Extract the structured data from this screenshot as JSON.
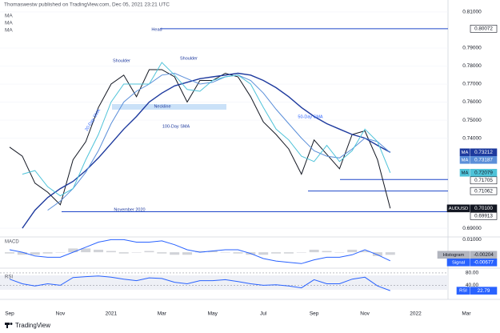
{
  "header": "Thomaswestw published on TradingView.com, Dec 05, 2021 23:21 UTC",
  "footer": "TradingView",
  "chart_data": [
    {
      "type": "line",
      "categories": [
        "Sep",
        null,
        null,
        null,
        "Nov",
        null,
        null,
        null,
        "2021",
        null,
        null,
        null,
        "Mar",
        null,
        null,
        null,
        "May",
        null,
        null,
        null,
        "Jul",
        null,
        null,
        null,
        "Sep",
        null,
        null,
        null,
        "Nov",
        null,
        null,
        null,
        "2022",
        null,
        null,
        null,
        "Mar"
      ],
      "ylim": [
        0.6856,
        0.8131
      ],
      "yticks": [
        {
          "value": 0.81,
          "label": "0.81000"
        },
        {
          "value": 0.79,
          "label": "0.79000"
        },
        {
          "value": 0.78,
          "label": "0.78000"
        },
        {
          "value": 0.77,
          "label": "0.77000"
        },
        {
          "value": 0.76,
          "label": "0.76000"
        },
        {
          "value": 0.75,
          "label": "0.75000"
        },
        {
          "value": 0.74,
          "label": "0.74000"
        },
        {
          "value": 0.69,
          "label": "0.69000"
        }
      ],
      "grid": true,
      "series": [
        {
          "name": "AUDUSD",
          "color": "#131722",
          "in_legend": false,
          "values": [
            0.735,
            0.73,
            0.715,
            0.71,
            0.703,
            0.728,
            0.738,
            0.757,
            0.77,
            0.775,
            0.763,
            0.778,
            0.778,
            0.774,
            0.76,
            0.772,
            0.772,
            0.776,
            0.774,
            0.763,
            0.749,
            0.742,
            0.734,
            0.72,
            0.739,
            0.731,
            0.723,
            0.742,
            0.744,
            0.728,
            0.701,
            null,
            null,
            null,
            null,
            null,
            null
          ],
          "badge": {
            "value": 0.701,
            "label": "0.70100"
          }
        },
        {
          "name": "MA",
          "color": "#1e3a9e",
          "in_legend": true,
          "values": [
            null,
            0.69,
            0.7,
            0.707,
            0.712,
            0.716,
            0.722,
            0.729,
            0.737,
            0.745,
            0.752,
            0.76,
            0.765,
            0.769,
            0.771,
            0.773,
            0.774,
            0.775,
            0.776,
            0.775,
            0.772,
            0.768,
            0.763,
            0.757,
            0.752,
            0.748,
            0.745,
            0.742,
            0.74,
            0.736,
            0.73212,
            null,
            null,
            null,
            null,
            null,
            null
          ],
          "badge": {
            "value": 0.73212,
            "label": "0.73212"
          }
        },
        {
          "name": "MA",
          "color": "#5b8fd9",
          "in_legend": true,
          "values": [
            null,
            null,
            null,
            0.7,
            0.705,
            0.712,
            0.721,
            0.733,
            0.748,
            0.76,
            0.766,
            0.77,
            0.775,
            0.776,
            0.773,
            0.77,
            0.771,
            0.774,
            0.775,
            0.772,
            0.765,
            0.756,
            0.748,
            0.74,
            0.733,
            0.73,
            0.729,
            0.734,
            0.74,
            0.738,
            0.73187,
            null,
            null,
            null,
            null,
            null,
            null
          ],
          "badge": {
            "value": 0.73187,
            "label": "0.73187"
          }
        },
        {
          "name": "MA",
          "color": "#4fc3d9",
          "in_legend": true,
          "values": [
            null,
            0.72,
            0.722,
            0.713,
            0.708,
            0.712,
            0.728,
            0.742,
            0.76,
            0.77,
            0.77,
            0.77,
            0.782,
            0.775,
            0.767,
            0.766,
            0.772,
            0.774,
            0.775,
            0.77,
            0.757,
            0.745,
            0.739,
            0.73,
            0.727,
            0.736,
            0.727,
            0.733,
            0.745,
            0.738,
            0.72079,
            null,
            null,
            null,
            null,
            null,
            null
          ],
          "badge": {
            "value": 0.72079,
            "label": "0.72079"
          }
        }
      ],
      "levels": [
        {
          "value": 0.80072,
          "label": "0.80072"
        },
        {
          "value": 0.71705,
          "label": "0.71705"
        },
        {
          "value": 0.71062,
          "label": "0.71062"
        },
        {
          "value": 0.69913,
          "label": "0.69913"
        }
      ],
      "level_color": "#1f47c9",
      "annotations": [
        "Head",
        "Shoulder",
        "Shoulder",
        "Neckline",
        "20-Day SMA",
        "100-Day SMA",
        "50-Day SMA",
        "November 2020"
      ]
    },
    {
      "type": "line",
      "title": "MACD",
      "ylim": [
        -0.012,
        0.0115
      ],
      "yticks": [
        {
          "value": 0.01,
          "label": "0.01000"
        }
      ],
      "grid": false,
      "series": [
        {
          "name": "Histogram",
          "style": "bar",
          "color": "#b2b5be",
          "values": [
            -0.001,
            -0.002,
            -0.002,
            -0.001,
            0.0,
            0.003,
            0.003,
            0.002,
            0.001,
            -0.001,
            0.0,
            0.001,
            -0.001,
            -0.002,
            -0.002,
            0.001,
            0.001,
            0.0,
            -0.001,
            -0.002,
            -0.002,
            -0.001,
            -0.001,
            0.0,
            0.002,
            0.001,
            0.0,
            0.002,
            0.001,
            -0.003,
            -0.00204,
            null,
            null,
            null,
            null,
            null,
            null
          ],
          "badge": {
            "value": -0.00204,
            "label": "-0.00204"
          }
        },
        {
          "name": "Signal",
          "style": "line",
          "color": "#2962ff",
          "values": [
            0.002,
            0.0,
            -0.003,
            -0.004,
            -0.004,
            0.0,
            0.004,
            0.008,
            0.01,
            0.01,
            0.008,
            0.008,
            0.009,
            0.006,
            0.002,
            0.0,
            0.001,
            0.002,
            0.002,
            -0.001,
            -0.005,
            -0.007,
            -0.008,
            -0.009,
            -0.006,
            -0.004,
            -0.004,
            -0.002,
            0.002,
            -0.002,
            -0.00677,
            null,
            null,
            null,
            null,
            null,
            null
          ],
          "badge": {
            "value": -0.00677,
            "label": "-0.00677"
          }
        }
      ]
    },
    {
      "type": "line",
      "title": "RSI",
      "ylim": [
        0,
        90
      ],
      "yticks": [
        {
          "value": 80,
          "label": "80.00"
        },
        {
          "value": 40,
          "label": "40.00"
        }
      ],
      "grid": true,
      "series": [
        {
          "name": "RSI",
          "style": "line",
          "color": "#2962ff",
          "values": [
            60,
            45,
            38,
            45,
            40,
            65,
            68,
            70,
            66,
            60,
            55,
            64,
            62,
            50,
            45,
            55,
            55,
            58,
            52,
            45,
            40,
            42,
            38,
            32,
            58,
            45,
            45,
            60,
            66,
            38,
            22.79,
            null,
            null,
            null,
            null,
            null,
            null
          ],
          "badge": {
            "value": 22.79,
            "label": "22.79"
          }
        }
      ]
    }
  ]
}
